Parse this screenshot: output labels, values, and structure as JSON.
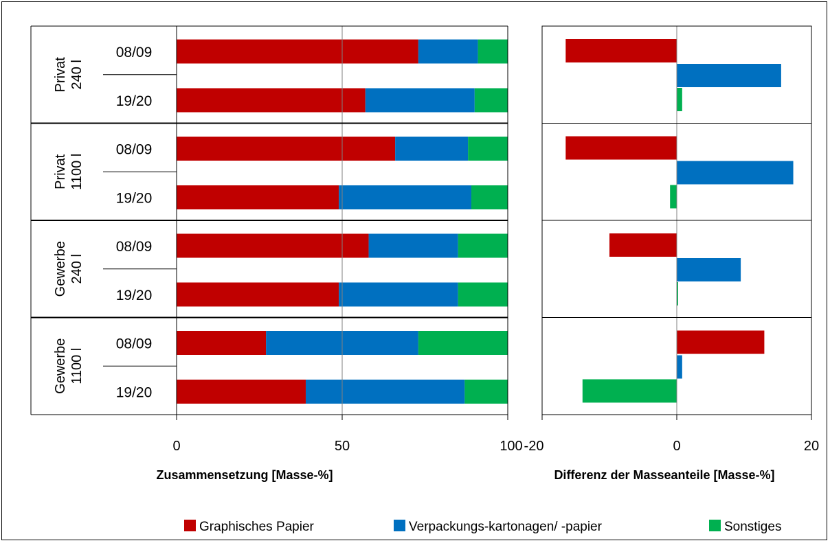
{
  "chart_data": [
    {
      "type": "bar",
      "stacked": true,
      "orientation": "horizontal",
      "xlabel": "Zusammensetzung [Masse-%]",
      "xlim": [
        0,
        100
      ],
      "xticks": [
        "0",
        "50",
        "100"
      ],
      "groups": [
        "Privat 240 l",
        "Privat 1100 l",
        "Gewerbe 240 l",
        "Gewerbe 1100 l"
      ],
      "categories": [
        "08/09",
        "19/20",
        "08/09",
        "19/20",
        "08/09",
        "19/20",
        "08/09",
        "19/20"
      ],
      "series": [
        {
          "name": "Graphisches Papier",
          "color": "#c00000",
          "values": [
            73,
            57,
            66,
            49,
            58,
            49,
            27,
            39
          ]
        },
        {
          "name": "Verpackungs-kartonagen/ -papier",
          "color": "#0070c0",
          "values": [
            18,
            33,
            22,
            40,
            27,
            36,
            46,
            48
          ]
        },
        {
          "name": "Sonstiges",
          "color": "#00b050",
          "values": [
            9,
            10,
            12,
            11,
            15,
            15,
            27,
            13
          ]
        }
      ]
    },
    {
      "type": "bar",
      "orientation": "horizontal",
      "xlabel": "Differenz der Masseanteile [Masse-%]",
      "xlim": [
        -20,
        20
      ],
      "xticks": [
        "-20",
        "0",
        "20"
      ],
      "groups": [
        "Privat 240 l",
        "Privat 1100 l",
        "Gewerbe 240 l",
        "Gewerbe 1100 l"
      ],
      "series": [
        {
          "name": "Graphisches Papier",
          "color": "#c00000",
          "values": [
            -16.5,
            -16.5,
            -10,
            13
          ]
        },
        {
          "name": "Verpackungs-kartonagen/ -papier",
          "color": "#0070c0",
          "values": [
            15.5,
            17.3,
            9.5,
            0.8
          ]
        },
        {
          "name": "Sonstiges",
          "color": "#00b050",
          "values": [
            0.8,
            -1,
            0.2,
            -14
          ]
        }
      ]
    }
  ],
  "legend": [
    {
      "label": "Graphisches Papier",
      "color": "#c00000"
    },
    {
      "label": "Verpackungs-kartonagen/ -papier",
      "color": "#0070c0"
    },
    {
      "label": "Sonstiges",
      "color": "#00b050"
    }
  ]
}
